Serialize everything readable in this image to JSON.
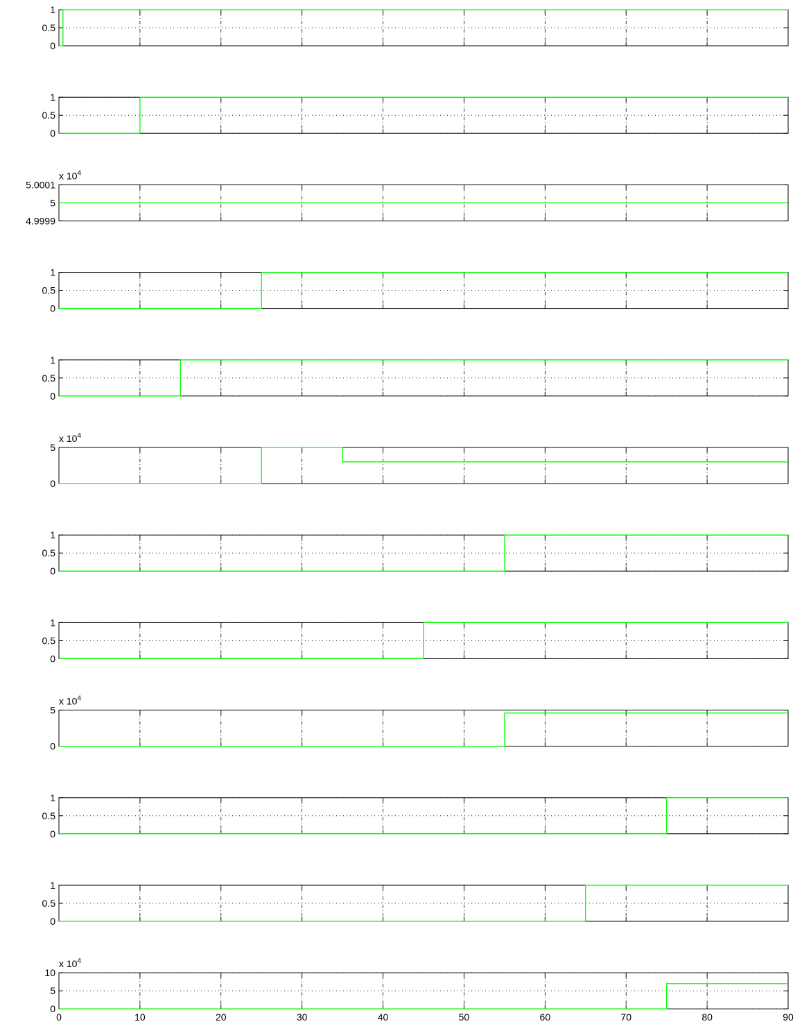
{
  "chart_data": [
    {
      "type": "line",
      "x": [
        0,
        0.5,
        0.5,
        90
      ],
      "values": [
        0,
        0,
        1,
        1
      ],
      "color": "#00ff00",
      "xlim": [
        0,
        90
      ],
      "xticks": [
        0,
        10,
        20,
        30,
        40,
        50,
        60,
        70,
        80,
        90
      ],
      "ylim": [
        0,
        1
      ],
      "yticks": [
        0,
        0.5,
        1
      ],
      "grid": true,
      "show_xtick_labels": false
    },
    {
      "type": "line",
      "x": [
        0,
        10,
        10,
        90
      ],
      "values": [
        0,
        0,
        1,
        1
      ],
      "color": "#00ff00",
      "xlim": [
        0,
        90
      ],
      "xticks": [
        0,
        10,
        20,
        30,
        40,
        50,
        60,
        70,
        80,
        90
      ],
      "ylim": [
        0,
        1
      ],
      "yticks": [
        0,
        0.5,
        1
      ],
      "grid": true,
      "show_xtick_labels": false
    },
    {
      "type": "line",
      "x": [
        0,
        90
      ],
      "values": [
        5,
        5
      ],
      "color": "#00ff00",
      "xlim": [
        0,
        90
      ],
      "xticks": [
        0,
        10,
        20,
        30,
        40,
        50,
        60,
        70,
        80,
        90
      ],
      "ylim": [
        4.9999,
        5.0001
      ],
      "yticks": [
        4.9999,
        5,
        5.0001
      ],
      "y_multiplier": "x 10",
      "y_multiplier_exp": "4",
      "grid": true,
      "show_xtick_labels": false
    },
    {
      "type": "line",
      "x": [
        0,
        25,
        25,
        90
      ],
      "values": [
        0,
        0,
        1,
        1
      ],
      "color": "#00ff00",
      "xlim": [
        0,
        90
      ],
      "xticks": [
        0,
        10,
        20,
        30,
        40,
        50,
        60,
        70,
        80,
        90
      ],
      "ylim": [
        0,
        1
      ],
      "yticks": [
        0,
        0.5,
        1
      ],
      "grid": true,
      "show_xtick_labels": false
    },
    {
      "type": "line",
      "x": [
        0,
        15,
        15,
        90
      ],
      "values": [
        0,
        0,
        1,
        1
      ],
      "color": "#00ff00",
      "xlim": [
        0,
        90
      ],
      "xticks": [
        0,
        10,
        20,
        30,
        40,
        50,
        60,
        70,
        80,
        90
      ],
      "ylim": [
        0,
        1
      ],
      "yticks": [
        0,
        0.5,
        1
      ],
      "grid": true,
      "show_xtick_labels": false
    },
    {
      "type": "line",
      "x": [
        0,
        25,
        25,
        35,
        35,
        90
      ],
      "values": [
        0,
        0,
        5,
        5,
        3,
        3
      ],
      "color": "#00ff00",
      "xlim": [
        0,
        90
      ],
      "xticks": [
        0,
        10,
        20,
        30,
        40,
        50,
        60,
        70,
        80,
        90
      ],
      "ylim": [
        0,
        5
      ],
      "yticks": [
        0,
        5
      ],
      "y_multiplier": "x 10",
      "y_multiplier_exp": "4",
      "grid": true,
      "show_xtick_labels": false
    },
    {
      "type": "line",
      "x": [
        0,
        55,
        55,
        90
      ],
      "values": [
        0,
        0,
        1,
        1
      ],
      "color": "#00ff00",
      "xlim": [
        0,
        90
      ],
      "xticks": [
        0,
        10,
        20,
        30,
        40,
        50,
        60,
        70,
        80,
        90
      ],
      "ylim": [
        0,
        1
      ],
      "yticks": [
        0,
        0.5,
        1
      ],
      "grid": true,
      "show_xtick_labels": false
    },
    {
      "type": "line",
      "x": [
        0,
        45,
        45,
        90
      ],
      "values": [
        0,
        0,
        1,
        1
      ],
      "color": "#00ff00",
      "xlim": [
        0,
        90
      ],
      "xticks": [
        0,
        10,
        20,
        30,
        40,
        50,
        60,
        70,
        80,
        90
      ],
      "ylim": [
        0,
        1
      ],
      "yticks": [
        0,
        0.5,
        1
      ],
      "grid": true,
      "show_xtick_labels": false
    },
    {
      "type": "line",
      "x": [
        0,
        55,
        55,
        90
      ],
      "values": [
        0,
        0,
        4.6,
        4.6
      ],
      "color": "#00ff00",
      "xlim": [
        0,
        90
      ],
      "xticks": [
        0,
        10,
        20,
        30,
        40,
        50,
        60,
        70,
        80,
        90
      ],
      "ylim": [
        0,
        5
      ],
      "yticks": [
        0,
        5
      ],
      "y_multiplier": "x 10",
      "y_multiplier_exp": "4",
      "grid": true,
      "show_xtick_labels": false
    },
    {
      "type": "line",
      "x": [
        0,
        75,
        75,
        90
      ],
      "values": [
        0,
        0,
        1,
        1
      ],
      "color": "#00ff00",
      "xlim": [
        0,
        90
      ],
      "xticks": [
        0,
        10,
        20,
        30,
        40,
        50,
        60,
        70,
        80,
        90
      ],
      "ylim": [
        0,
        1
      ],
      "yticks": [
        0,
        0.5,
        1
      ],
      "grid": true,
      "show_xtick_labels": false
    },
    {
      "type": "line",
      "x": [
        0,
        65,
        65,
        90
      ],
      "values": [
        0,
        0,
        1,
        1
      ],
      "color": "#00ff00",
      "xlim": [
        0,
        90
      ],
      "xticks": [
        0,
        10,
        20,
        30,
        40,
        50,
        60,
        70,
        80,
        90
      ],
      "ylim": [
        0,
        1
      ],
      "yticks": [
        0,
        0.5,
        1
      ],
      "grid": true,
      "show_xtick_labels": false
    },
    {
      "type": "line",
      "x": [
        0,
        75,
        75,
        90
      ],
      "values": [
        0,
        0,
        7,
        7
      ],
      "color": "#00ff00",
      "xlim": [
        0,
        90
      ],
      "xticks": [
        0,
        10,
        20,
        30,
        40,
        50,
        60,
        70,
        80,
        90
      ],
      "ylim": [
        0,
        10
      ],
      "yticks": [
        0,
        5,
        10
      ],
      "y_multiplier": "x 10",
      "y_multiplier_exp": "4",
      "grid": true,
      "show_xtick_labels": true
    }
  ]
}
